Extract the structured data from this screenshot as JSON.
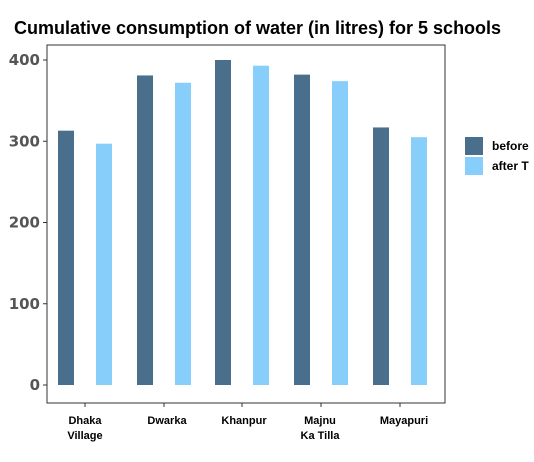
{
  "chart_data": {
    "type": "bar",
    "title": "Cumulative consumption of water (in litres) for 5 schools",
    "xlabel": "",
    "ylabel": "",
    "categories": [
      [
        "Dhaka",
        "Village"
      ],
      [
        "Dwarka"
      ],
      [
        "Khanpur"
      ],
      [
        "Majnu",
        "Ka Tilla"
      ],
      [
        "Mayapuri"
      ]
    ],
    "series": [
      {
        "name": "before",
        "color": "#4a6f8c",
        "values": [
          313,
          381,
          400,
          382,
          317
        ]
      },
      {
        "name": "after T",
        "color": "#87cefa",
        "values": [
          297,
          372,
          393,
          374,
          305
        ]
      }
    ],
    "ylim": [
      0,
      420
    ],
    "yticks": [
      "0",
      "100",
      "200",
      "300",
      "400"
    ],
    "ytick_values": [
      0,
      100,
      200,
      300,
      400
    ],
    "grid": false,
    "legend_position": "right"
  }
}
